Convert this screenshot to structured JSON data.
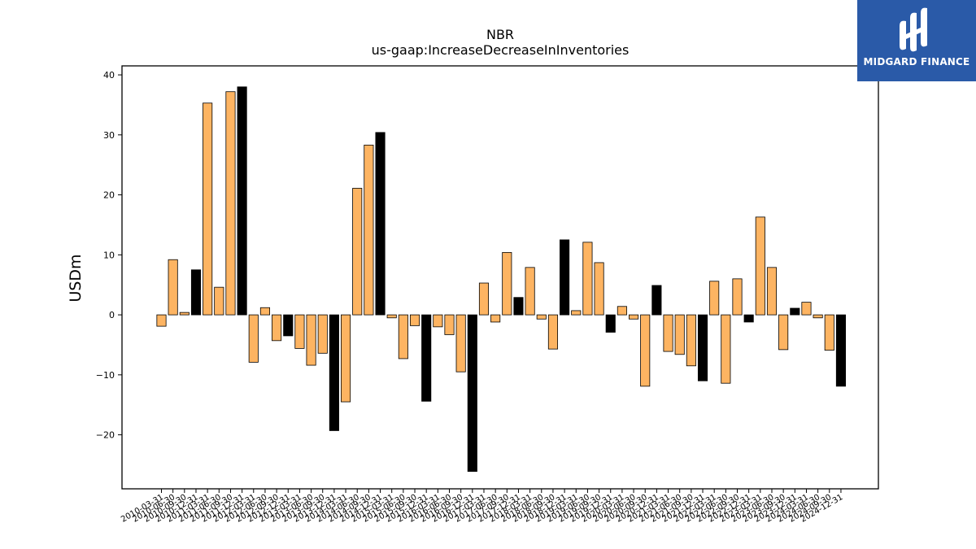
{
  "brand": {
    "name": "MIDGARD FINANCE",
    "background": "#2a5aa8",
    "icon": "midgard-logo-icon"
  },
  "colors": {
    "normal": "#fdb462",
    "q4": "#000000",
    "edge": "#000000",
    "axis": "#000000"
  },
  "chart_data": {
    "type": "bar",
    "title": "NBR",
    "subtitle": "us-gaap:IncreaseDecreaseInInventories",
    "xlabel": "",
    "ylabel": "USDm",
    "ylim": [
      -29,
      41.5
    ],
    "yticks": [
      -20,
      -10,
      0,
      10,
      20,
      30,
      40
    ],
    "grid": false,
    "legend": "none",
    "categories": [
      "2010-03-31",
      "2010-06-30",
      "2010-09-30",
      "2010-12-31",
      "2011-03-31",
      "2011-06-30",
      "2011-09-30",
      "2011-12-31",
      "2012-03-31",
      "2012-06-30",
      "2012-09-30",
      "2012-12-31",
      "2013-03-31",
      "2013-06-30",
      "2013-09-30",
      "2013-12-31",
      "2014-03-31",
      "2014-06-30",
      "2014-09-30",
      "2014-12-31",
      "2015-03-31",
      "2015-06-30",
      "2015-09-30",
      "2015-12-31",
      "2016-03-31",
      "2016-06-30",
      "2016-09-30",
      "2016-12-31",
      "2017-03-31",
      "2017-06-30",
      "2017-09-30",
      "2017-12-31",
      "2018-03-31",
      "2018-06-30",
      "2018-09-30",
      "2018-12-31",
      "2019-03-31",
      "2019-06-30",
      "2019-09-30",
      "2019-12-31",
      "2020-03-31",
      "2020-06-30",
      "2020-09-30",
      "2020-12-31",
      "2021-03-31",
      "2021-06-30",
      "2021-09-30",
      "2021-12-31",
      "2022-03-31",
      "2022-06-30",
      "2022-09-30",
      "2022-12-31",
      "2023-03-31",
      "2023-06-30",
      "2023-09-30",
      "2023-12-31",
      "2024-03-31",
      "2024-06-30",
      "2024-09-30",
      "2024-12-31"
    ],
    "values": [
      -1.9,
      9.2,
      0.4,
      7.5,
      35.3,
      4.6,
      37.2,
      38.0,
      -7.9,
      1.2,
      -4.3,
      -3.5,
      -5.6,
      -8.4,
      -6.4,
      -19.3,
      -14.5,
      21.1,
      28.3,
      30.4,
      -0.5,
      -7.3,
      -1.8,
      -14.4,
      -2.0,
      -3.3,
      -9.5,
      -26.1,
      5.3,
      -1.2,
      10.4,
      2.9,
      7.9,
      -0.7,
      -5.7,
      12.5,
      0.7,
      12.1,
      8.7,
      -2.9,
      1.4,
      -0.7,
      -11.9,
      4.9,
      -6.1,
      -6.6,
      -8.5,
      -11.0,
      5.6,
      -11.4,
      6.0,
      -1.2,
      16.3,
      7.9,
      -5.8,
      1.1,
      2.1,
      -0.5,
      -5.9,
      -11.9
    ],
    "tick_labels_shown": [
      "2010-03-31",
      "2010-06-30",
      "2010-09-30",
      "2010-12-31",
      "2011-03-31",
      "2011-06-30",
      "2011-09-30",
      "2011-12-31",
      "2012-03-31",
      "2012-06-30",
      "2012-09-30",
      "2012-12-31",
      "2013-03-31",
      "2013-06-30",
      "2013-09-30",
      "2013-12-31",
      "2014-03-31",
      "2014-06-30",
      "2014-09-30",
      "2014-12-31",
      "2015-03-31",
      "2015-06-30",
      "2015-09-30",
      "2015-12-31",
      "2016-03-31",
      "2016-06-30",
      "2016-09-30",
      "2016-12-31",
      "2017-03-31",
      "2017-06-30",
      "2017-09-30",
      "2017-12-31",
      "2018-03-31",
      "2018-06-30",
      "2018-09-30",
      "2018-12-31",
      "2019-03-31",
      "2019-06-30",
      "2019-09-30",
      "2019-12-31",
      "2020-03-31",
      "2020-06-30",
      "2020-09-30",
      "2020-12-31",
      "2021-03-31",
      "2021-06-30",
      "2021-09-30",
      "2021-12-31",
      "2022-03-31",
      "2022-06-30",
      "2022-09-30",
      "2022-12-31",
      "2023-03-31",
      "2023-06-30",
      "2023-09-30",
      "2023-12-31",
      "2024-03-31",
      "2024-06-30",
      "2024-09-30",
      "2024-12-31"
    ]
  }
}
